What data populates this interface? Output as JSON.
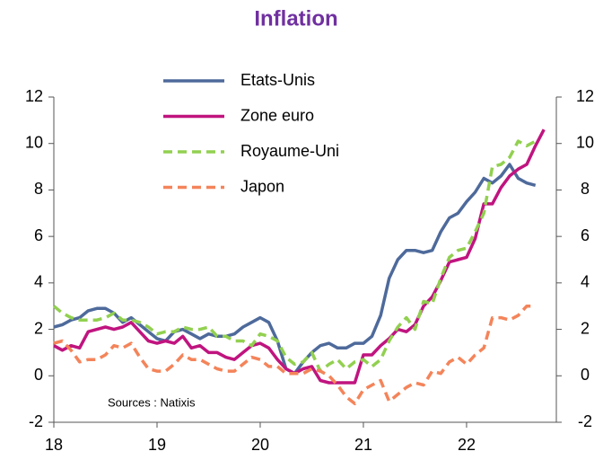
{
  "chart_data": {
    "type": "line",
    "title": "Inflation",
    "annotation": "Sources : Natixis",
    "x": [
      18,
      18.083,
      18.167,
      18.25,
      18.333,
      18.417,
      18.5,
      18.583,
      18.667,
      18.75,
      18.833,
      18.917,
      19,
      19.083,
      19.167,
      19.25,
      19.333,
      19.417,
      19.5,
      19.583,
      19.667,
      19.75,
      19.833,
      19.917,
      20,
      20.083,
      20.167,
      20.25,
      20.333,
      20.417,
      20.5,
      20.583,
      20.667,
      20.75,
      20.833,
      20.917,
      21,
      21.083,
      21.167,
      21.25,
      21.333,
      21.417,
      21.5,
      21.583,
      21.667,
      21.75,
      21.833,
      21.917,
      22,
      22.083,
      22.167,
      22.25,
      22.333,
      22.417,
      22.5,
      22.583,
      22.667,
      22.75
    ],
    "series": [
      {
        "name": "Etats-Unis",
        "color": "#4e6a9b",
        "dashed": false,
        "values": [
          2.1,
          2.2,
          2.4,
          2.5,
          2.8,
          2.9,
          2.9,
          2.7,
          2.3,
          2.5,
          2.2,
          1.9,
          1.6,
          1.5,
          1.9,
          2.0,
          1.8,
          1.6,
          1.8,
          1.7,
          1.7,
          1.8,
          2.1,
          2.3,
          2.5,
          2.3,
          1.5,
          0.3,
          0.1,
          0.6,
          1.0,
          1.3,
          1.4,
          1.2,
          1.2,
          1.4,
          1.4,
          1.7,
          2.6,
          4.2,
          5.0,
          5.4,
          5.4,
          5.3,
          5.4,
          6.2,
          6.8,
          7.0,
          7.5,
          7.9,
          8.5,
          8.3,
          8.6,
          9.1,
          8.5,
          8.3,
          8.2,
          null
        ]
      },
      {
        "name": "Zone euro",
        "color": "#c0147f",
        "dashed": false,
        "values": [
          1.3,
          1.1,
          1.3,
          1.2,
          1.9,
          2.0,
          2.1,
          2.0,
          2.1,
          2.3,
          1.9,
          1.5,
          1.4,
          1.5,
          1.4,
          1.7,
          1.2,
          1.3,
          1.0,
          1.0,
          0.8,
          0.7,
          1.0,
          1.3,
          1.4,
          1.2,
          0.7,
          0.3,
          0.1,
          0.3,
          0.4,
          -0.2,
          -0.3,
          -0.3,
          -0.3,
          -0.3,
          0.9,
          0.9,
          1.3,
          1.6,
          2.0,
          1.9,
          2.2,
          3.0,
          3.4,
          4.1,
          4.9,
          5.0,
          5.1,
          5.9,
          7.4,
          7.4,
          8.1,
          8.6,
          8.9,
          9.1,
          9.9,
          10.6
        ]
      },
      {
        "name": "Royaume-Uni",
        "color": "#92d050",
        "dashed": true,
        "values": [
          3.0,
          2.7,
          2.5,
          2.4,
          2.4,
          2.4,
          2.5,
          2.7,
          2.4,
          2.4,
          2.3,
          2.1,
          1.8,
          1.9,
          1.9,
          2.1,
          2.0,
          2.0,
          2.1,
          1.7,
          1.7,
          1.5,
          1.5,
          1.3,
          1.8,
          1.7,
          1.5,
          0.8,
          0.5,
          0.6,
          1.0,
          0.2,
          0.5,
          0.7,
          0.3,
          0.6,
          0.7,
          0.4,
          0.7,
          1.5,
          2.1,
          2.5,
          2.0,
          3.2,
          3.1,
          4.2,
          5.1,
          5.4,
          5.5,
          6.2,
          7.0,
          9.0,
          9.1,
          9.4,
          10.1,
          9.9,
          10.1,
          null
        ]
      },
      {
        "name": "Japon",
        "color": "#f4845a",
        "dashed": true,
        "values": [
          1.4,
          1.5,
          1.1,
          0.6,
          0.7,
          0.7,
          0.9,
          1.3,
          1.2,
          1.4,
          0.8,
          0.3,
          0.2,
          0.2,
          0.5,
          0.9,
          0.7,
          0.7,
          0.5,
          0.3,
          0.2,
          0.2,
          0.5,
          0.8,
          0.7,
          0.4,
          0.4,
          0.1,
          0.1,
          0.1,
          0.3,
          0.2,
          0.0,
          -0.4,
          -0.9,
          -1.2,
          -0.6,
          -0.4,
          -0.2,
          -1.1,
          -0.8,
          -0.5,
          -0.3,
          -0.4,
          0.2,
          0.1,
          0.6,
          0.8,
          0.5,
          0.9,
          1.2,
          2.5,
          2.5,
          2.4,
          2.6,
          3.0,
          3.0,
          null
        ]
      }
    ],
    "xlim": [
      18,
      22.87
    ],
    "xticks": [
      18,
      19,
      20,
      21,
      22
    ],
    "ylim": [
      -2,
      12
    ],
    "yticks": [
      -2,
      0,
      2,
      4,
      6,
      8,
      10,
      12
    ],
    "y2lim": [
      -2,
      12
    ],
    "y2ticks": [
      -2,
      0,
      2,
      4,
      6,
      8,
      10,
      12
    ],
    "legend": "top-left",
    "grid": false
  }
}
